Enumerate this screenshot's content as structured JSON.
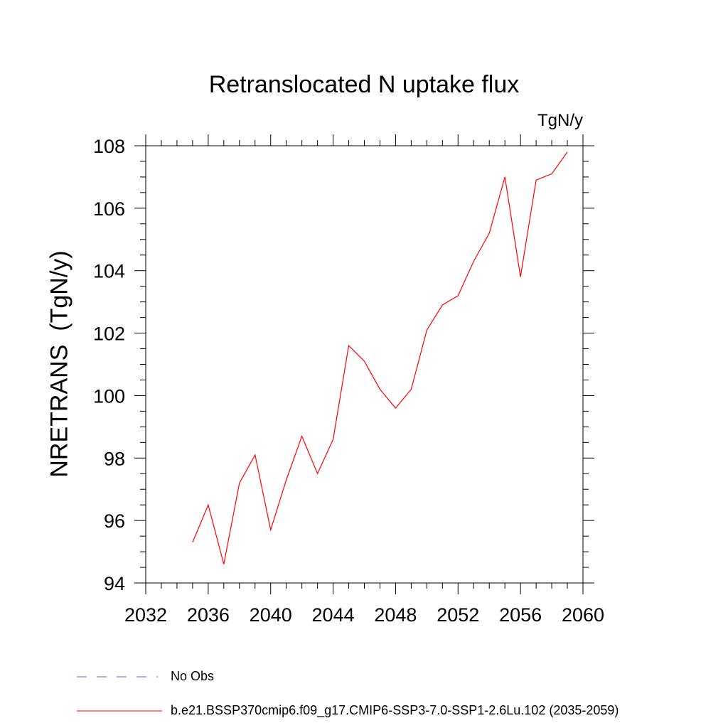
{
  "chart_data": {
    "type": "line",
    "title": "Retranslocated N uptake flux",
    "units_label": "TgN/y",
    "xlabel": "",
    "ylabel": "NRETRANS  (TgN/y)",
    "xlim": [
      2032,
      2060
    ],
    "ylim": [
      94,
      108
    ],
    "x_ticks": [
      2032,
      2036,
      2040,
      2044,
      2048,
      2052,
      2056,
      2060
    ],
    "y_ticks": [
      94,
      96,
      98,
      100,
      102,
      104,
      106,
      108
    ],
    "grid": false,
    "legend": [
      {
        "label": "No Obs",
        "color": "#6a5acd",
        "style": "dashed"
      },
      {
        "label": "b.e21.BSSP370cmip6.f09_g17.CMIP6-SSP3-7.0-SSP1-2.6Lu.102 (2035-2059)",
        "color": "#ff0000",
        "style": "solid"
      }
    ],
    "series": [
      {
        "name": "b.e21.BSSP370cmip6.f09_g17.CMIP6-SSP3-7.0-SSP1-2.6Lu.102 (2035-2059)",
        "color": "#ff0000",
        "x": [
          2035,
          2036,
          2037,
          2038,
          2039,
          2040,
          2041,
          2042,
          2043,
          2044,
          2045,
          2046,
          2047,
          2048,
          2049,
          2050,
          2051,
          2052,
          2053,
          2054,
          2055,
          2056,
          2057,
          2058,
          2059
        ],
        "values": [
          95.3,
          96.5,
          94.6,
          97.2,
          98.1,
          95.7,
          97.3,
          98.7,
          97.5,
          98.6,
          101.6,
          101.1,
          100.2,
          99.6,
          100.2,
          102.1,
          102.9,
          103.2,
          104.3,
          105.2,
          107.0,
          103.8,
          106.9,
          107.1,
          107.8
        ]
      }
    ]
  }
}
